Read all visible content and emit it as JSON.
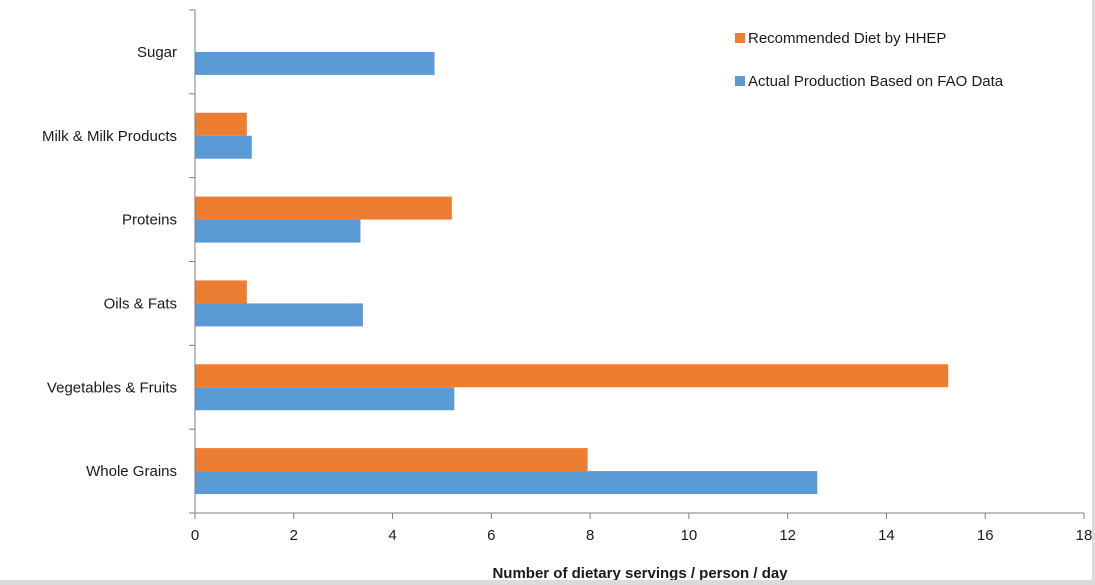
{
  "chart_data": {
    "type": "bar",
    "orientation": "horizontal",
    "categories": [
      "Sugar",
      "Milk & Milk Products",
      "Proteins",
      "Oils & Fats",
      "Vegetables & Fruits",
      "Whole Grains"
    ],
    "series": [
      {
        "name": "Recommended Diet by HHEP",
        "color": "#ed7d31",
        "values": [
          null,
          1.05,
          5.2,
          1.05,
          15.25,
          7.95
        ]
      },
      {
        "name": "Actual Production Based on FAO Data",
        "color": "#5b9bd5",
        "values": [
          4.85,
          1.15,
          3.35,
          3.4,
          5.25,
          12.6
        ]
      }
    ],
    "xlabel": "Number of dietary servings / person / day",
    "xlim": [
      0,
      18
    ],
    "xticks": [
      0,
      2,
      4,
      6,
      8,
      10,
      12,
      14,
      16,
      18
    ],
    "grid": false,
    "legend_position": "top-right"
  }
}
